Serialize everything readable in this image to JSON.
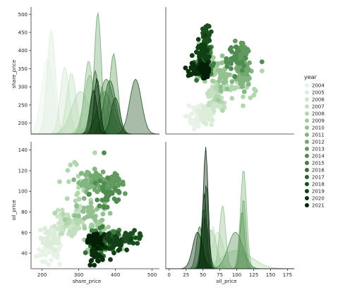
{
  "chart_data": {
    "type": "pairplot",
    "variables": [
      "share_price",
      "oil_price"
    ],
    "axis_labels": {
      "share_price": "share_price",
      "oil_price": "oil_price"
    },
    "ticks": {
      "share_price_x": [
        200,
        300,
        400,
        500
      ],
      "share_price_y": [
        200,
        250,
        300,
        350,
        400,
        450,
        500
      ],
      "oil_price_x": [
        0,
        25,
        50,
        75,
        100,
        125,
        150,
        175
      ],
      "oil_price_y": [
        40,
        60,
        80,
        100,
        120,
        140
      ]
    },
    "ranges": {
      "share_price": [
        170,
        520
      ],
      "oil_price_x": [
        -5,
        185
      ],
      "oil_price_y": [
        25,
        148
      ]
    },
    "legend": {
      "title": "year",
      "placement": "right",
      "entries": [
        "2004",
        "2005",
        "2006",
        "2007",
        "2008",
        "2009",
        "2010",
        "2011",
        "2012",
        "2013",
        "2014",
        "2015",
        "2016",
        "2017",
        "2018",
        "2019",
        "2020",
        "2021"
      ],
      "colors": [
        "#e8f3e8",
        "#dcedd9",
        "#cfe6cc",
        "#c2dfbf",
        "#b2d6ae",
        "#a2cc9f",
        "#92c18f",
        "#82b57f",
        "#71a86f",
        "#609a5f",
        "#508c50",
        "#417e42",
        "#336f35",
        "#265f29",
        "#1a4f1e",
        "#104014",
        "#08300c",
        "#031f06"
      ]
    },
    "series": [
      {
        "name": "2004",
        "share_mean": 225,
        "share_sd": 20,
        "oil_mean": 40,
        "oil_sd": 6
      },
      {
        "name": "2005",
        "share_mean": 225,
        "share_sd": 14,
        "oil_mean": 55,
        "oil_sd": 6
      },
      {
        "name": "2006",
        "share_mean": 260,
        "share_sd": 15,
        "oil_mean": 65,
        "oil_sd": 5
      },
      {
        "name": "2007",
        "share_mean": 280,
        "share_sd": 16,
        "oil_mean": 72,
        "oil_sd": 9
      },
      {
        "name": "2008",
        "share_mean": 300,
        "share_sd": 30,
        "oil_mean": 100,
        "oil_sd": 25
      },
      {
        "name": "2009",
        "share_mean": 350,
        "share_sd": 25,
        "oil_mean": 62,
        "oil_sd": 9
      },
      {
        "name": "2010",
        "share_mean": 330,
        "share_sd": 20,
        "oil_mean": 80,
        "oil_sd": 5
      },
      {
        "name": "2011",
        "share_mean": 330,
        "share_sd": 15,
        "oil_mean": 110,
        "oil_sd": 5
      },
      {
        "name": "2012",
        "share_mean": 355,
        "share_sd": 12,
        "oil_mean": 110,
        "oil_sd": 4
      },
      {
        "name": "2013",
        "share_mean": 395,
        "share_sd": 14,
        "oil_mean": 108,
        "oil_sd": 4
      },
      {
        "name": "2014",
        "share_mean": 380,
        "share_sd": 25,
        "oil_mean": 98,
        "oil_sd": 12
      },
      {
        "name": "2015",
        "share_mean": 370,
        "share_sd": 25,
        "oil_mean": 53,
        "oil_sd": 6
      },
      {
        "name": "2016",
        "share_mean": 350,
        "share_sd": 12,
        "oil_mean": 45,
        "oil_sd": 5
      },
      {
        "name": "2017",
        "share_mean": 385,
        "share_sd": 20,
        "oil_mean": 52,
        "oil_sd": 4
      },
      {
        "name": "2018",
        "share_mean": 440,
        "share_sd": 20,
        "oil_mean": 55,
        "oil_sd": 3
      },
      {
        "name": "2019",
        "share_mean": 395,
        "share_sd": 15,
        "oil_mean": 50,
        "oil_sd": 4
      },
      {
        "name": "2020",
        "share_mean": 345,
        "share_sd": 12,
        "oil_mean": 42,
        "oil_sd": 8
      },
      {
        "name": "2021",
        "share_mean": 345,
        "share_sd": 10,
        "oil_mean": 52,
        "oil_sd": 4
      }
    ],
    "kde_peaks": {
      "share_price": [
        {
          "name": "2004",
          "x": 215,
          "peak": 0.62
        },
        {
          "name": "2005",
          "x": 225,
          "peak": 0.85
        },
        {
          "name": "2006",
          "x": 262,
          "peak": 0.55
        },
        {
          "name": "2007",
          "x": 280,
          "peak": 0.5
        },
        {
          "name": "2008",
          "x": 305,
          "peak": 0.35
        },
        {
          "name": "2009",
          "x": 355,
          "peak": 0.4
        },
        {
          "name": "2010",
          "x": 330,
          "peak": 0.48
        },
        {
          "name": "2011",
          "x": 327,
          "peak": 0.6
        },
        {
          "name": "2012",
          "x": 352,
          "peak": 1.0
        },
        {
          "name": "2013",
          "x": 395,
          "peak": 0.66
        },
        {
          "name": "2014",
          "x": 370,
          "peak": 0.35
        },
        {
          "name": "2015",
          "x": 375,
          "peak": 0.45
        },
        {
          "name": "2016",
          "x": 345,
          "peak": 0.52
        },
        {
          "name": "2017",
          "x": 385,
          "peak": 0.44
        },
        {
          "name": "2018",
          "x": 455,
          "peak": 0.45
        },
        {
          "name": "2019",
          "x": 400,
          "peak": 0.3
        },
        {
          "name": "2020",
          "x": 340,
          "peak": 0.36
        },
        {
          "name": "2021",
          "x": 350,
          "peak": 0.46
        }
      ],
      "oil_price": [
        {
          "name": "2004",
          "x": 40,
          "peak": 0.25
        },
        {
          "name": "2005",
          "x": 55,
          "peak": 0.28
        },
        {
          "name": "2006",
          "x": 65,
          "peak": 0.35
        },
        {
          "name": "2007",
          "x": 72,
          "peak": 0.3
        },
        {
          "name": "2008",
          "x": 100,
          "peak": 0.15
        },
        {
          "name": "2009",
          "x": 62,
          "peak": 0.32
        },
        {
          "name": "2010",
          "x": 79,
          "peak": 0.52
        },
        {
          "name": "2011",
          "x": 110,
          "peak": 0.82
        },
        {
          "name": "2012",
          "x": 110,
          "peak": 0.58
        },
        {
          "name": "2013",
          "x": 108,
          "peak": 0.48
        },
        {
          "name": "2014",
          "x": 98,
          "peak": 0.3
        },
        {
          "name": "2015",
          "x": 53,
          "peak": 0.42
        },
        {
          "name": "2016",
          "x": 45,
          "peak": 0.35
        },
        {
          "name": "2017",
          "x": 51,
          "peak": 0.5
        },
        {
          "name": "2018",
          "x": 55,
          "peak": 0.72
        },
        {
          "name": "2019",
          "x": 52,
          "peak": 0.62
        },
        {
          "name": "2020",
          "x": 42,
          "peak": 0.3
        },
        {
          "name": "2021",
          "x": 54,
          "peak": 1.0
        }
      ]
    }
  }
}
